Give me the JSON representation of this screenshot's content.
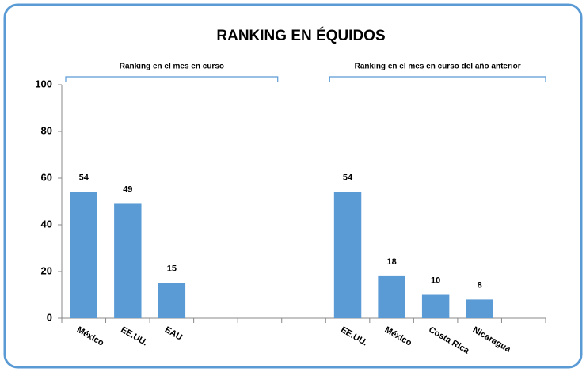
{
  "chart_data": {
    "type": "bar",
    "title": "RANKING EN ÉQUIDOS",
    "group_labels": [
      "Ranking en el mes en curso",
      "Ranking en el mes en curso del año anterior"
    ],
    "categories": [
      "México",
      "EE.UU.",
      "EAU",
      null,
      null,
      null,
      "EE.UU.",
      "México",
      "Costa Rica",
      "Nicaragua",
      null
    ],
    "values": [
      54,
      49,
      15,
      null,
      null,
      null,
      54,
      18,
      10,
      8,
      null
    ],
    "color": "#5b9bd5",
    "ylim": [
      0,
      100
    ],
    "yticks": [
      0,
      20,
      40,
      60,
      80,
      100
    ],
    "grid": false
  }
}
